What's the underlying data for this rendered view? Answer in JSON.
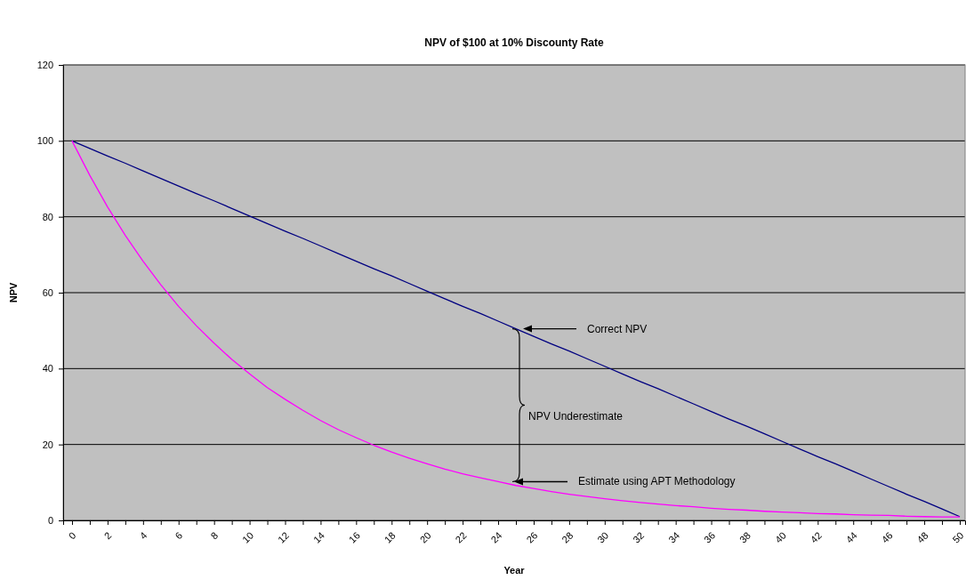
{
  "chart_data": {
    "type": "line",
    "title": "NPV of $100 at 10% Discounty Rate",
    "xlabel": "Year",
    "ylabel": "NPV",
    "x": [
      0,
      1,
      2,
      3,
      4,
      5,
      6,
      7,
      8,
      9,
      10,
      11,
      12,
      13,
      14,
      15,
      16,
      17,
      18,
      19,
      20,
      21,
      22,
      23,
      24,
      25,
      26,
      27,
      28,
      29,
      30,
      31,
      32,
      33,
      34,
      35,
      36,
      37,
      38,
      39,
      40,
      41,
      42,
      43,
      44,
      45,
      46,
      47,
      48,
      49,
      50
    ],
    "series": [
      {
        "color": "#000080",
        "values": [
          100,
          98,
          96,
          94.1,
          92.1,
          90.1,
          88.1,
          86.1,
          84.2,
          82.2,
          80.2,
          78.2,
          76.2,
          74.3,
          72.3,
          70.3,
          68.3,
          66.3,
          64.4,
          62.4,
          60.4,
          58.4,
          56.4,
          54.5,
          52.5,
          50.5,
          48.5,
          46.5,
          44.6,
          42.6,
          40.6,
          38.6,
          36.6,
          34.7,
          32.7,
          30.7,
          28.7,
          26.7,
          24.8,
          22.8,
          20.8,
          18.8,
          16.8,
          14.9,
          12.9,
          10.9,
          8.9,
          6.9,
          5,
          3,
          1
        ]
      },
      {
        "color": "#ff00ff",
        "values": [
          100,
          90.9,
          82.6,
          75.1,
          68.3,
          62.1,
          56.4,
          51.3,
          46.7,
          42.4,
          38.6,
          35,
          31.9,
          29,
          26.3,
          23.9,
          21.8,
          19.8,
          18,
          16.4,
          14.9,
          13.5,
          12.3,
          11.2,
          10.2,
          9.2,
          8.4,
          7.6,
          6.9,
          6.3,
          5.7,
          5.2,
          4.7,
          4.3,
          3.9,
          3.6,
          3.2,
          2.9,
          2.7,
          2.4,
          2.2,
          2,
          1.8,
          1.7,
          1.5,
          1.4,
          1.3,
          1.1,
          1,
          0.9,
          0.9
        ]
      }
    ],
    "xlim": [
      -0.5,
      50.3
    ],
    "xticks": [
      0,
      {
        "value": 1,
        "label": null
      },
      2,
      {
        "value": 3,
        "label": null
      },
      4,
      {
        "value": 5,
        "label": null
      },
      6,
      {
        "value": 7,
        "label": null
      },
      8,
      {
        "value": 9,
        "label": null
      },
      10,
      {
        "value": 11,
        "label": null
      },
      12,
      {
        "value": 13,
        "label": null
      },
      14,
      {
        "value": 15,
        "label": null
      },
      16,
      {
        "value": 17,
        "label": null
      },
      18,
      {
        "value": 19,
        "label": null
      },
      20,
      {
        "value": 21,
        "label": null
      },
      22,
      {
        "value": 23,
        "label": null
      },
      24,
      {
        "value": 25,
        "label": null
      },
      26,
      {
        "value": 27,
        "label": null
      },
      28,
      {
        "value": 29,
        "label": null
      },
      30,
      {
        "value": 31,
        "label": null
      },
      32,
      {
        "value": 33,
        "label": null
      },
      34,
      {
        "value": 35,
        "label": null
      },
      36,
      {
        "value": 37,
        "label": null
      },
      38,
      {
        "value": 39,
        "label": null
      },
      40,
      {
        "value": 41,
        "label": null
      },
      42,
      {
        "value": 43,
        "label": null
      },
      44,
      {
        "value": 45,
        "label": null
      },
      46,
      {
        "value": 47,
        "label": null
      },
      48,
      {
        "value": 49,
        "label": null
      },
      50
    ],
    "ylim": [
      0,
      120
    ],
    "yticks": [
      0,
      20,
      40,
      60,
      80,
      100,
      120
    ],
    "grid": "y",
    "marker": "none",
    "line_style": "solid",
    "annotations": [
      {
        "text": "Correct NPV",
        "x": 25.4,
        "y": 50.5
      },
      "NPV Underestimate",
      {
        "text": "Estimate using APT Methodology",
        "x": 24.9,
        "y": 10.2
      }
    ]
  }
}
